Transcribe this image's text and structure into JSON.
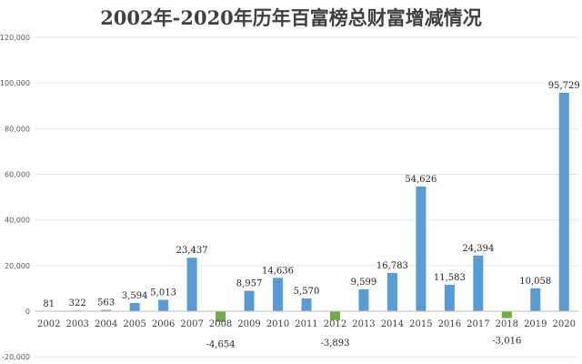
{
  "chart_data": {
    "type": "bar",
    "title": "2002年-2020年历年百富榜总财富增减情况",
    "xlabel": "",
    "ylabel": "",
    "categories": [
      "2002",
      "2003",
      "2004",
      "2005",
      "2006",
      "2007",
      "2008",
      "2009",
      "2010",
      "2011",
      "2012",
      "2013",
      "2014",
      "2015",
      "2016",
      "2017",
      "2018",
      "2019",
      "2020"
    ],
    "values": [
      81,
      322,
      563,
      3594,
      5013,
      23437,
      -4654,
      8957,
      14636,
      5570,
      -3893,
      9599,
      16783,
      54626,
      11583,
      24394,
      -3016,
      10058,
      95729
    ],
    "data_labels": [
      "81",
      "322",
      "563",
      "3,594",
      "5,013",
      "23,437",
      "-4,654",
      "8,957",
      "14,636",
      "5,570",
      "-3,893",
      "9,599",
      "16,783",
      "54,626",
      "11,583",
      "24,394",
      "-3,016",
      "10,058",
      "95,729"
    ],
    "y_ticks": [
      "120,000",
      "100,000",
      "80,000",
      "60,000",
      "40,000",
      "20,000",
      "0",
      "-20,000"
    ],
    "ylim": [
      -20000,
      120000
    ],
    "grid": true,
    "colors": {
      "positive": "#5b9bd5",
      "negative": "#70ad47",
      "grid": "#e6e6e6",
      "axis": "#bfbfbf"
    }
  }
}
